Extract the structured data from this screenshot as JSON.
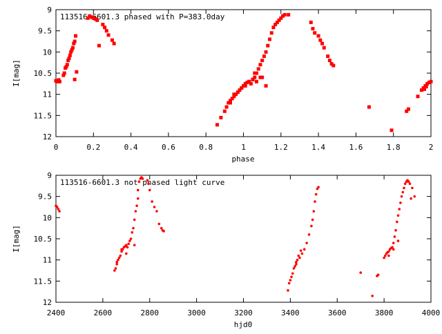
{
  "colors": {
    "points": "#ff0000",
    "axis": "#000000",
    "background": "#ffffff"
  },
  "chart_data": [
    {
      "type": "scatter",
      "title": "113516-6601.3 phased with P=383.0day",
      "xlabel": "phase",
      "ylabel": "I[mag]",
      "xlim": [
        0,
        2
      ],
      "ylim": [
        9,
        12
      ],
      "y_inverted": true,
      "grid": false,
      "xticks": [
        "0",
        "0.2",
        "0.4",
        "0.6",
        "0.8",
        "1",
        "1.2",
        "1.4",
        "1.6",
        "1.8",
        "2"
      ],
      "yticks": [
        "9",
        "9.5",
        "10",
        "10.5",
        "11",
        "11.5",
        "12"
      ],
      "marker": "square",
      "series": [
        {
          "x": [
            0.0,
            0.005,
            0.01,
            0.015,
            0.02,
            0.04,
            0.045,
            0.05,
            0.055,
            0.06,
            0.065,
            0.07,
            0.075,
            0.08,
            0.085,
            0.09,
            0.095,
            0.1,
            0.105,
            0.11,
            0.1,
            0.17,
            0.18,
            0.19,
            0.2,
            0.21,
            0.22,
            0.25,
            0.26,
            0.27,
            0.28,
            0.3,
            0.31,
            0.23,
            0.86,
            0.88,
            0.9,
            0.91,
            0.92,
            0.93,
            0.94,
            0.95,
            0.96,
            0.97,
            0.98,
            0.99,
            1.0,
            1.01,
            1.02,
            1.03,
            1.04,
            1.05,
            1.06,
            1.07,
            1.08,
            1.09,
            1.1,
            1.11,
            1.12,
            1.13,
            1.14,
            1.15,
            1.16,
            1.17,
            1.18,
            1.19,
            1.2,
            1.21,
            1.22,
            1.24,
            1.06,
            1.1,
            1.12,
            0.93,
            0.95,
            0.97,
            0.99,
            1.01,
            1.03,
            1.05,
            1.07,
            1.09,
            1.36,
            1.37,
            1.38,
            1.4,
            1.41,
            1.42,
            1.43,
            1.45,
            1.46,
            1.47,
            1.48,
            1.67,
            1.79,
            1.87,
            1.88,
            1.93,
            1.95,
            1.96,
            1.97,
            1.98,
            1.99,
            2.0,
            1.965,
            1.975
          ],
          "y": [
            10.68,
            10.7,
            10.68,
            10.66,
            10.7,
            10.55,
            10.5,
            10.38,
            10.35,
            10.3,
            10.2,
            10.15,
            10.08,
            10.0,
            9.95,
            9.9,
            9.8,
            9.75,
            9.62,
            10.47,
            10.65,
            9.2,
            9.15,
            9.18,
            9.2,
            9.22,
            9.25,
            9.35,
            9.42,
            9.5,
            9.6,
            9.72,
            9.8,
            9.85,
            11.72,
            11.55,
            11.4,
            11.3,
            11.2,
            11.15,
            11.1,
            11.05,
            11.0,
            10.95,
            10.9,
            10.85,
            10.8,
            10.75,
            10.72,
            10.7,
            10.75,
            10.65,
            10.6,
            10.5,
            10.4,
            10.3,
            10.2,
            10.1,
            10.0,
            9.85,
            9.7,
            9.55,
            9.42,
            9.35,
            9.3,
            9.25,
            9.2,
            9.15,
            9.12,
            9.12,
            10.5,
            10.6,
            10.8,
            11.2,
            11.0,
            10.95,
            10.85,
            10.8,
            10.7,
            10.65,
            10.7,
            10.6,
            9.3,
            9.45,
            9.55,
            9.62,
            9.72,
            9.8,
            9.9,
            10.1,
            10.2,
            10.28,
            10.32,
            11.3,
            11.85,
            11.4,
            11.35,
            11.05,
            10.9,
            10.85,
            10.8,
            10.75,
            10.72,
            10.7,
            10.88,
            10.82
          ]
        }
      ]
    },
    {
      "type": "scatter",
      "title": "113516-6601.3 not phased light curve",
      "xlabel": "hjd0",
      "ylabel": "I[mag]",
      "xlim": [
        2400,
        4000
      ],
      "ylim": [
        9,
        12
      ],
      "y_inverted": true,
      "grid": false,
      "xticks": [
        "2400",
        "2600",
        "2800",
        "3000",
        "3200",
        "3400",
        "3600",
        "3800",
        "4000"
      ],
      "yticks": [
        "9",
        "9.5",
        "10",
        "10.5",
        "11",
        "11.5",
        "12"
      ],
      "marker": "dot",
      "series": [
        {
          "x": [
            2400,
            2405,
            2410,
            2415,
            2650,
            2655,
            2660,
            2665,
            2670,
            2675,
            2680,
            2685,
            2690,
            2695,
            2700,
            2705,
            2710,
            2715,
            2720,
            2725,
            2730,
            2735,
            2740,
            2745,
            2750,
            2755,
            2760,
            2765,
            2770,
            2660,
            2680,
            2700,
            2735,
            2750,
            2790,
            2795,
            2800,
            2810,
            2820,
            2830,
            2840,
            2850,
            2855,
            2860,
            3390,
            3395,
            3400,
            3405,
            3410,
            3415,
            3420,
            3425,
            3430,
            3440,
            3450,
            3460,
            3470,
            3480,
            3490,
            3495,
            3500,
            3505,
            3510,
            3515,
            3520,
            3425,
            3435,
            3445,
            3700,
            3750,
            3770,
            3775,
            3800,
            3805,
            3810,
            3815,
            3820,
            3825,
            3830,
            3835,
            3840,
            3845,
            3850,
            3855,
            3860,
            3865,
            3870,
            3875,
            3880,
            3885,
            3890,
            3895,
            3900,
            3905,
            3910,
            3920,
            3930,
            3820,
            3840,
            3860,
            3915
          ],
          "y": [
            9.72,
            9.75,
            9.8,
            9.85,
            11.25,
            11.2,
            11.05,
            11.0,
            10.95,
            10.9,
            10.8,
            10.75,
            10.7,
            10.68,
            10.65,
            10.7,
            10.62,
            10.55,
            10.5,
            10.35,
            10.25,
            10.05,
            9.85,
            9.72,
            9.35,
            9.15,
            9.08,
            9.05,
            9.08,
            11.1,
            10.75,
            10.85,
            10.65,
            9.55,
            9.12,
            9.2,
            9.35,
            9.62,
            9.75,
            9.85,
            10.15,
            10.25,
            10.3,
            10.32,
            11.72,
            11.55,
            11.48,
            11.4,
            11.32,
            11.2,
            11.15,
            11.05,
            11.0,
            10.95,
            10.85,
            10.75,
            10.6,
            10.4,
            10.2,
            10.05,
            9.85,
            9.62,
            9.45,
            9.32,
            9.28,
            11.1,
            10.9,
            10.78,
            11.3,
            11.85,
            11.38,
            11.35,
            10.95,
            10.9,
            10.85,
            10.82,
            10.8,
            10.75,
            10.72,
            10.7,
            10.6,
            10.45,
            10.3,
            10.1,
            9.95,
            9.8,
            9.65,
            9.5,
            9.4,
            9.3,
            9.2,
            9.15,
            9.12,
            9.15,
            9.2,
            9.3,
            9.5,
            10.9,
            10.75,
            10.55,
            9.55
          ]
        }
      ]
    }
  ]
}
